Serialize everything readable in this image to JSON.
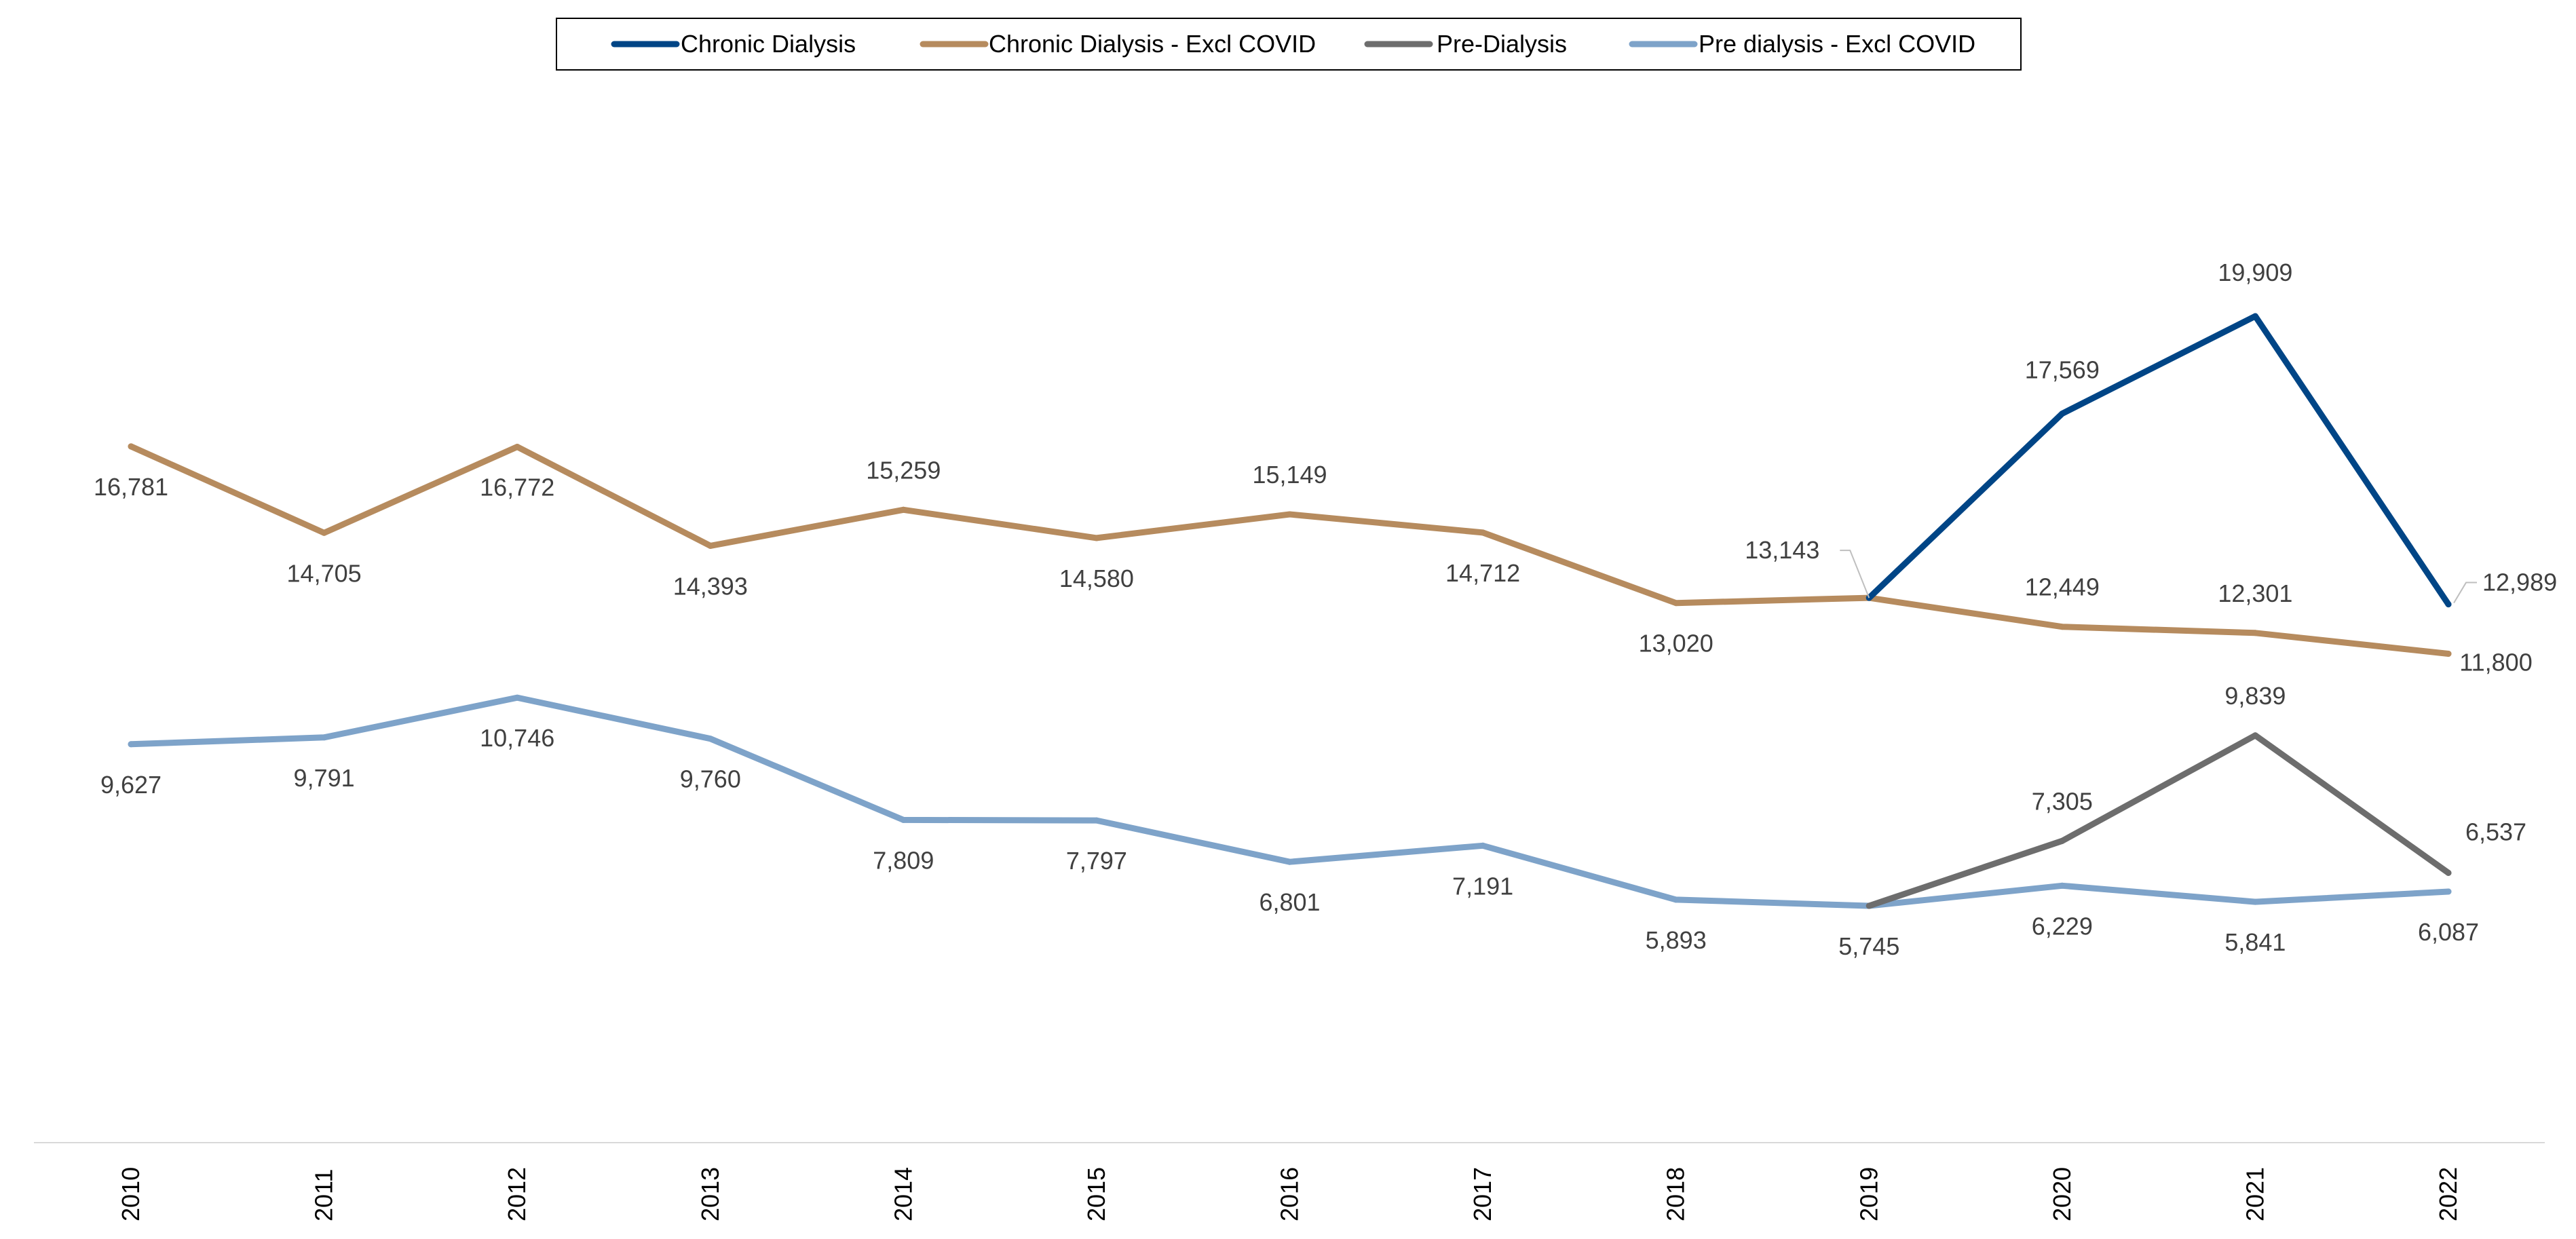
{
  "chart_data": {
    "type": "line",
    "title": "",
    "xlabel": "",
    "ylabel": "",
    "x": [
      "2010",
      "2011",
      "2012",
      "2013",
      "2014",
      "2015",
      "2016",
      "2017",
      "2018",
      "2019",
      "2020",
      "2021",
      "2022"
    ],
    "ylim": [
      0,
      28000
    ],
    "grid": false,
    "legend_position": "top",
    "series": [
      {
        "name": "Chronic Dialysis",
        "color": "#004586",
        "values": [
          null,
          null,
          null,
          null,
          null,
          null,
          null,
          null,
          null,
          13143,
          17569,
          19909,
          12989
        ],
        "labels": [
          "",
          "",
          "",
          "",
          "",
          "",
          "",
          "",
          "",
          "",
          "17,569",
          "19,909",
          "12,989"
        ]
      },
      {
        "name": "Chronic Dialysis - Excl COVID",
        "color": "#B68B5E",
        "values": [
          16781,
          14705,
          16772,
          14393,
          15259,
          14580,
          15149,
          14712,
          13020,
          13143,
          12449,
          12301,
          11800
        ],
        "labels": [
          "16,781",
          "14,705",
          "16,772",
          "14,393",
          "15,259",
          "14,580",
          "15,149",
          "14,712",
          "13,020",
          "13,143",
          "12,449",
          "12,301",
          "11,800"
        ]
      },
      {
        "name": "Pre-Dialysis",
        "color": "#6D6D6D",
        "values": [
          null,
          null,
          null,
          null,
          null,
          null,
          null,
          null,
          null,
          5745,
          7305,
          9839,
          6537
        ],
        "labels": [
          "",
          "",
          "",
          "",
          "",
          "",
          "",
          "",
          "",
          "",
          "7,305",
          "9,839",
          "6,537"
        ]
      },
      {
        "name": "Pre dialysis - Excl COVID",
        "color": "#7EA3C9",
        "values": [
          9627,
          9791,
          10746,
          9760,
          7809,
          7797,
          6801,
          7191,
          5893,
          5745,
          6229,
          5841,
          6087
        ],
        "labels": [
          "9,627",
          "9,791",
          "10,746",
          "9,760",
          "7,809",
          "7,797",
          "6,801",
          "7,191",
          "5,893",
          "5,745",
          "6,229",
          "5,841",
          "6,087"
        ]
      }
    ]
  }
}
